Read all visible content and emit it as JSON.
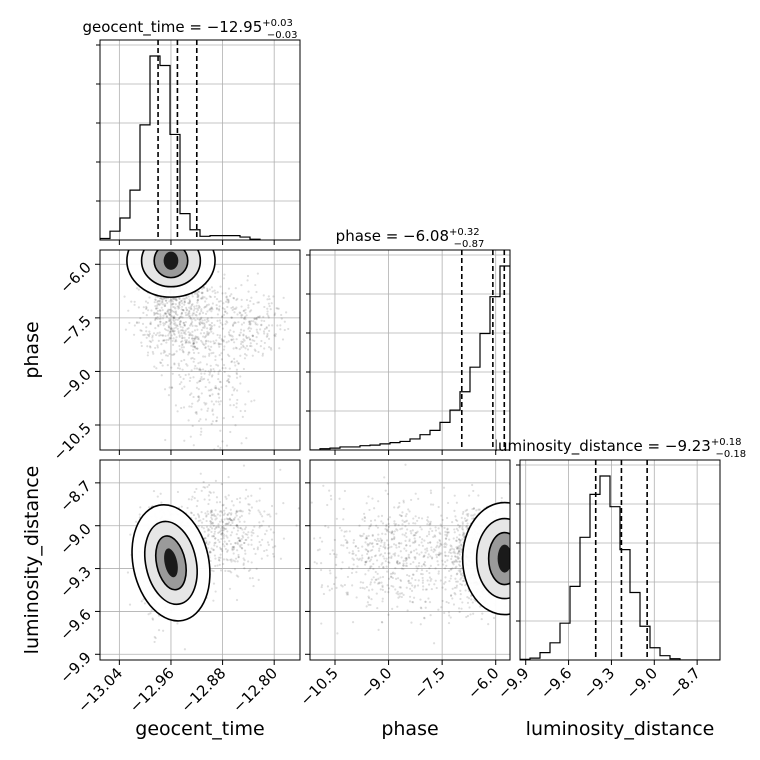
{
  "chart_data": {
    "type": "corner",
    "parameters": [
      "geocent_time",
      "phase",
      "luminosity_distance"
    ],
    "axis_labels": {
      "x": [
        "geocent_time",
        "phase",
        "luminosity_distance"
      ],
      "y": [
        "phase",
        "luminosity_distance"
      ]
    },
    "titles": [
      {
        "parameter": "geocent_time",
        "prefix": "geocent_time = −12.95",
        "upper": "+0.03",
        "lower": "−0.03"
      },
      {
        "parameter": "phase",
        "prefix": "phase = −6.08",
        "upper": "+0.32",
        "lower": "−0.87"
      },
      {
        "parameter": "luminosity_distance",
        "prefix": "luminosity_distance = −9.23",
        "upper": "+0.18",
        "lower": "−0.18"
      }
    ],
    "ranges": {
      "geocent_time": [
        -13.07,
        -12.76
      ],
      "phase": [
        -11.2,
        -5.6
      ],
      "luminosity_distance": [
        -9.94,
        -8.54
      ]
    },
    "ticks": {
      "geocent_time": {
        "values": [
          -13.04,
          -12.96,
          -12.88,
          -12.8
        ],
        "labels": [
          "−13.04",
          "−12.96",
          "−12.88",
          "−12.80"
        ]
      },
      "phase": {
        "values": [
          -10.5,
          -9.0,
          -7.5,
          -6.0
        ],
        "labels": [
          "−10.5",
          "−9.0",
          "−7.5",
          "−6.0"
        ]
      },
      "luminosity_distance": {
        "values": [
          -9.9,
          -9.6,
          -9.3,
          -9.0,
          -8.7
        ],
        "labels": [
          "−9.9",
          "−9.6",
          "−9.3",
          "−9.0",
          "−8.7"
        ]
      }
    },
    "grid": true,
    "quantiles": {
      "geocent_time": [
        -12.98,
        -12.95,
        -12.92
      ],
      "phase": [
        -6.95,
        -6.08,
        -5.76
      ],
      "luminosity_distance": [
        -9.41,
        -9.23,
        -9.05
      ]
    },
    "histograms": {
      "geocent_time": {
        "edges_start": -13.07,
        "bin_width": 0.0155,
        "counts": [
          2,
          12,
          30,
          68,
          157,
          251,
          238,
          144,
          36,
          14,
          5,
          6,
          6,
          6,
          4,
          1
        ]
      },
      "phase": {
        "edges_start": -11.2,
        "bin_width": 0.28,
        "counts": [
          0,
          2,
          3,
          5,
          5,
          7,
          8,
          10,
          12,
          14,
          18,
          25,
          32,
          45,
          65,
          95,
          135,
          190,
          250,
          300
        ]
      },
      "luminosity_distance": {
        "edges_start": -9.94,
        "bin_width": 0.07,
        "counts": [
          1,
          3,
          12,
          28,
          60,
          120,
          200,
          270,
          300,
          250,
          180,
          110,
          55,
          20,
          7,
          2,
          0,
          0,
          0,
          0
        ]
      }
    },
    "scatter_clusters": [
      {
        "pair": [
          "geocent_time",
          "phase"
        ],
        "mean": [
          -12.965,
          -6.2
        ],
        "sd": [
          0.012,
          0.35
        ],
        "count": 1100
      },
      {
        "pair": [
          "geocent_time",
          "phase"
        ],
        "mean": [
          -12.94,
          -7.4
        ],
        "sd": [
          0.035,
          0.7
        ],
        "count": 700
      },
      {
        "pair": [
          "geocent_time",
          "phase"
        ],
        "mean": [
          -12.9,
          -9.2
        ],
        "sd": [
          0.03,
          0.9
        ],
        "count": 250
      },
      {
        "pair": [
          "geocent_time",
          "phase"
        ],
        "mean": [
          -12.84,
          -7.7
        ],
        "sd": [
          0.025,
          0.5
        ],
        "count": 200
      },
      {
        "pair": [
          "geocent_time",
          "luminosity_distance"
        ],
        "mean": [
          -12.97,
          -9.25
        ],
        "sd": [
          0.018,
          0.16
        ],
        "count": 1300
      },
      {
        "pair": [
          "geocent_time",
          "luminosity_distance"
        ],
        "mean": [
          -12.88,
          -9.05
        ],
        "sd": [
          0.04,
          0.15
        ],
        "count": 500
      },
      {
        "pair": [
          "phase",
          "luminosity_distance"
        ],
        "mean": [
          -6.2,
          -9.23
        ],
        "sd": [
          0.5,
          0.16
        ],
        "count": 1300
      },
      {
        "pair": [
          "phase",
          "luminosity_distance"
        ],
        "mean": [
          -8.6,
          -9.2
        ],
        "sd": [
          1.1,
          0.2
        ],
        "count": 700
      }
    ],
    "density_peaks": [
      {
        "pair": [
          "geocent_time",
          "phase"
        ],
        "center": [
          -12.96,
          -5.9
        ]
      },
      {
        "pair": [
          "geocent_time",
          "luminosity_distance"
        ],
        "center": [
          -12.96,
          -9.26
        ]
      },
      {
        "pair": [
          "phase",
          "luminosity_distance"
        ],
        "center": [
          -5.75,
          -9.23
        ]
      }
    ]
  }
}
